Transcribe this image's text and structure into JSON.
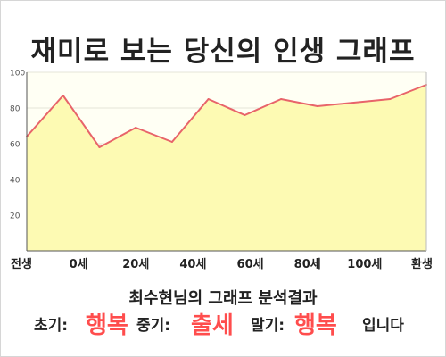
{
  "title": "재미로 보는 당신의 인생 그래프",
  "chart_data": {
    "type": "area",
    "title": "재미로 보는 당신의 인생 그래프",
    "xlabel": "",
    "ylabel": "",
    "x_tick_labels": [
      "전생",
      "0세",
      "20세",
      "40세",
      "60세",
      "80세",
      "100세",
      "환생"
    ],
    "y_ticks": [
      20,
      40,
      60,
      80,
      100
    ],
    "ylim": [
      0,
      100
    ],
    "grid": true,
    "series": [
      {
        "values": [
          64,
          87,
          58,
          69,
          61,
          85,
          76,
          85,
          81,
          83,
          85,
          93
        ]
      }
    ],
    "line_color": "#e8646a",
    "fill_color": "#fdfab3"
  },
  "result": {
    "heading": "최수현님의 그래프 분석결과",
    "early_label": "초기:",
    "early_value": "행복",
    "middle_label": "중기:",
    "middle_value": "출세",
    "late_label": "말기:",
    "late_value": "행복",
    "ending": "입니다"
  },
  "colors": {
    "highlight": "#ff4d4d"
  }
}
